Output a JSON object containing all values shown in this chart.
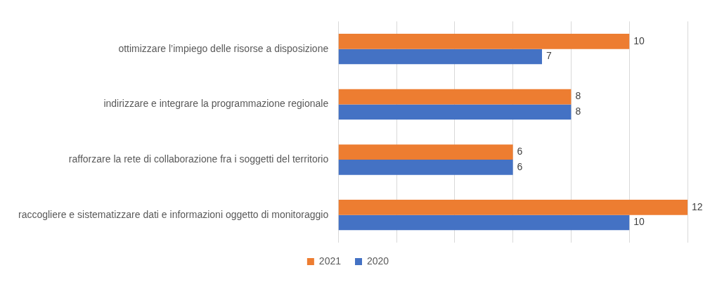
{
  "chart_data": {
    "type": "bar",
    "orientation": "horizontal",
    "categories": [
      "ottimizzare l’impiego delle risorse a disposizione",
      "indirizzare e integrare la programmazione regionale",
      "rafforzare la rete di collaborazione fra i soggetti del territorio",
      "raccogliere e sistematizzare dati e informazioni oggetto di monitoraggio"
    ],
    "series": [
      {
        "name": "2021",
        "color": "#ed7d31",
        "values": [
          10,
          8,
          6,
          12
        ]
      },
      {
        "name": "2020",
        "color": "#4472c4",
        "values": [
          7,
          8,
          6,
          10
        ]
      }
    ],
    "xlim": [
      0,
      12
    ],
    "xticks": [
      {
        "value": 0,
        "label": null
      },
      {
        "value": 2,
        "label": null
      },
      {
        "value": 4,
        "label": null
      },
      {
        "value": 6,
        "label": null
      },
      {
        "value": 8,
        "label": null
      },
      {
        "value": 10,
        "label": null
      },
      {
        "value": 12,
        "label": null
      }
    ],
    "tick_labels": "y",
    "grid": "x",
    "legend": "bottom",
    "data_labels": true
  }
}
